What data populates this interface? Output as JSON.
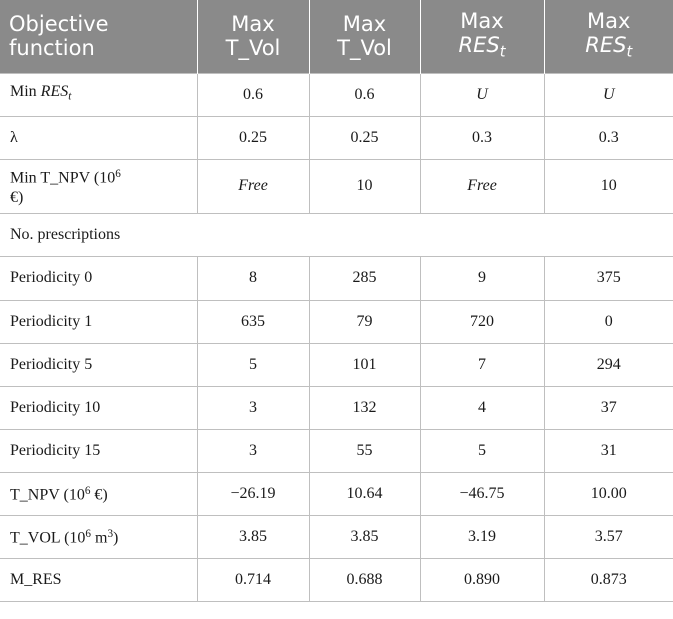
{
  "header": {
    "col0": "Objective function",
    "col1": "Max T_Vol",
    "col2": "Max T_Vol",
    "col3_prefix": "Max",
    "col3_res": "RES",
    "col3_sub": "t",
    "col4_prefix": "Max",
    "col4_res": "RES",
    "col4_sub": "t"
  },
  "rows": {
    "min_res": {
      "label_prefix": "Min ",
      "label_res": "RES",
      "label_sub": "t",
      "values": [
        "0.6",
        "0.6",
        "U",
        "U"
      ]
    },
    "lambda": {
      "label": "λ",
      "values": [
        "0.25",
        "0.25",
        "0.3",
        "0.3"
      ]
    },
    "min_tnpv": {
      "label_prefix": "Min T_NPV (10",
      "label_sup": "6",
      "label_suffix": " €)",
      "values": [
        "Free",
        "10",
        "Free",
        "10"
      ]
    },
    "no_prescriptions": {
      "label": "No. prescriptions"
    },
    "periodicity_0": {
      "label": "Periodicity 0",
      "values": [
        "8",
        "285",
        "9",
        "375"
      ]
    },
    "periodicity_1": {
      "label": "Periodicity 1",
      "values": [
        "635",
        "79",
        "720",
        "0"
      ]
    },
    "periodicity_5": {
      "label": "Periodicity 5",
      "values": [
        "5",
        "101",
        "7",
        "294"
      ]
    },
    "periodicity_10": {
      "label": "Periodicity 10",
      "values": [
        "3",
        "132",
        "4",
        "37"
      ]
    },
    "periodicity_15": {
      "label": "Periodicity 15",
      "values": [
        "3",
        "55",
        "5",
        "31"
      ]
    },
    "t_npv": {
      "label_prefix": "T_NPV (10",
      "label_sup": "6",
      "label_suffix": " €)",
      "values": [
        "−26.19",
        "10.64",
        "−46.75",
        "10.00"
      ]
    },
    "t_vol": {
      "label_prefix": "T_VOL (10",
      "label_sup": "6",
      "label_mid": " m",
      "label_sup2": "3",
      "label_suffix": ")",
      "values": [
        "3.85",
        "3.85",
        "3.19",
        "3.57"
      ]
    },
    "m_res": {
      "label": "M_RES",
      "values": [
        "0.714",
        "0.688",
        "0.890",
        "0.873"
      ]
    }
  }
}
